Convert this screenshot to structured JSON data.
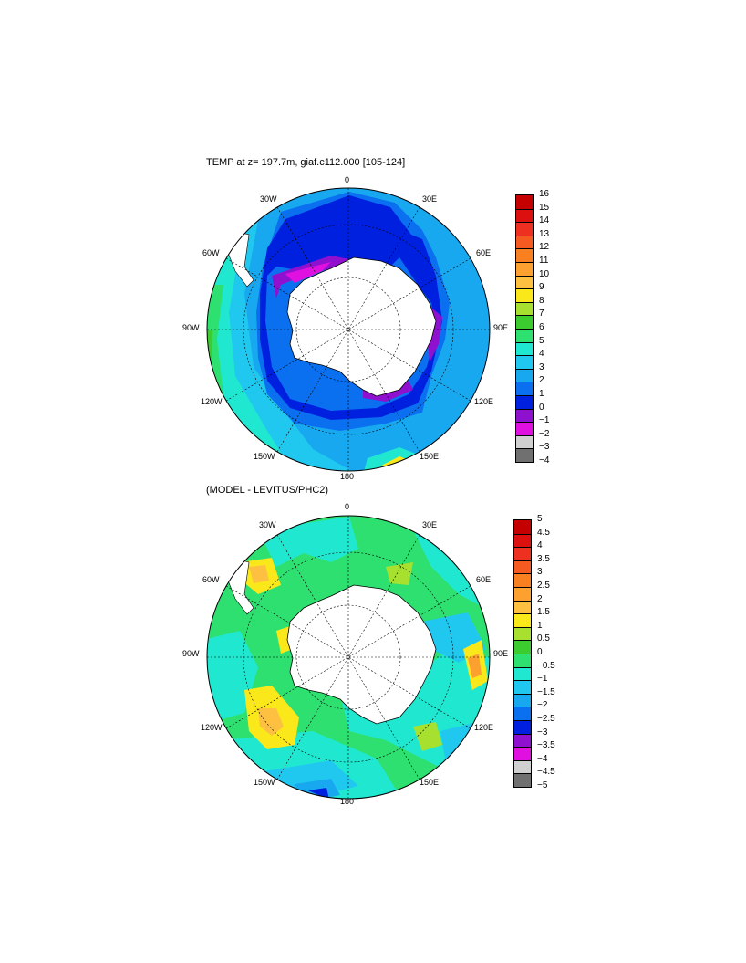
{
  "panels": [
    {
      "title": "TEMP at z= 197.7m, giaf.c112.000 [105-124]",
      "labels": {
        "top": "0",
        "tl": "30W",
        "tr": "30E",
        "ul": "60W",
        "ur": "60E",
        "l": "90W",
        "r": "90E",
        "ll": "120W",
        "lr": "120E",
        "bl": "150W",
        "br": "150E",
        "bottom": "180"
      },
      "colorbar": {
        "ticks": [
          "16",
          "15",
          "14",
          "13",
          "12",
          "11",
          "10",
          "9",
          "8",
          "7",
          "6",
          "5",
          "4",
          "3",
          "2",
          "1",
          "0",
          "−1",
          "−2",
          "−3",
          "−4"
        ],
        "colors": [
          "#c40000",
          "#dd1010",
          "#ee3020",
          "#f55a20",
          "#f88020",
          "#fca030",
          "#fdc040",
          "#fbe81a",
          "#a8e030",
          "#3ccc30",
          "#2ee070",
          "#20e8d0",
          "#20c8f0",
          "#18a8f0",
          "#0a70f0",
          "#0020e0",
          "#9010d0",
          "#e010e0",
          "#d0d0d0",
          "#707070"
        ]
      }
    },
    {
      "title": "(MODEL - LEVITUS/PHC2)",
      "labels": {
        "top": "0",
        "tl": "30W",
        "tr": "30E",
        "ul": "60W",
        "ur": "60E",
        "l": "90W",
        "r": "90E",
        "ll": "120W",
        "lr": "120E",
        "bl": "150W",
        "br": "150E",
        "bottom": "180"
      },
      "colorbar": {
        "ticks": [
          "5",
          "4.5",
          "4",
          "3.5",
          "3",
          "2.5",
          "2",
          "1.5",
          "1",
          "0.5",
          "0",
          "−0.5",
          "−1",
          "−1.5",
          "−2",
          "−2.5",
          "−3",
          "−3.5",
          "−4",
          "−4.5",
          "−5"
        ],
        "colors": [
          "#c40000",
          "#dd1010",
          "#ee3020",
          "#f55a20",
          "#f88020",
          "#fca030",
          "#fdc040",
          "#fbe81a",
          "#a8e030",
          "#3ccc30",
          "#2ee070",
          "#20e8d0",
          "#20c8f0",
          "#18a8f0",
          "#0a70f0",
          "#0020e0",
          "#9010d0",
          "#e010e0",
          "#d0d0d0",
          "#707070"
        ]
      }
    }
  ]
}
